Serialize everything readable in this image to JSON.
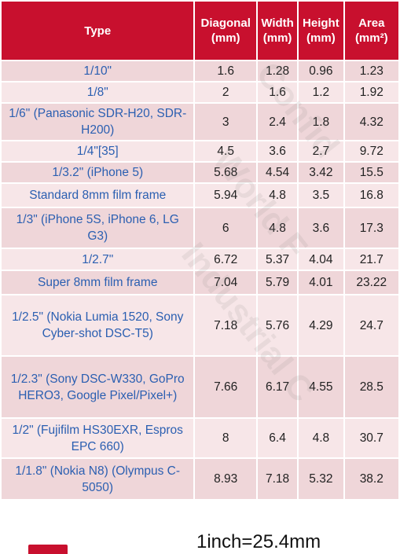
{
  "table": {
    "headers": {
      "type": "Type",
      "diagonal": "Diagonal (mm)",
      "width": "Width (mm)",
      "height": "Height (mm)",
      "area": "Area (mm²)"
    },
    "rows": [
      {
        "type": "1/10\"",
        "diagonal": "1.6",
        "width": "1.28",
        "height": "0.96",
        "area": "1.23"
      },
      {
        "type": "1/8\"",
        "diagonal": "2",
        "width": "1.6",
        "height": "1.2",
        "area": "1.92"
      },
      {
        "type": "1/6\" (Panasonic SDR-H20, SDR-H200)",
        "diagonal": "3",
        "width": "2.4",
        "height": "1.8",
        "area": "4.32"
      },
      {
        "type": "1/4\"[35]",
        "diagonal": "4.5",
        "width": "3.6",
        "height": "2.7",
        "area": "9.72"
      },
      {
        "type": "1/3.2\" (iPhone 5)",
        "diagonal": "5.68",
        "width": "4.54",
        "height": "3.42",
        "area": "15.5"
      },
      {
        "type": "Standard 8mm film frame",
        "diagonal": "5.94",
        "width": "4.8",
        "height": "3.5",
        "area": "16.8"
      },
      {
        "type": "1/3\" (iPhone 5S, iPhone 6, LG G3)",
        "diagonal": "6",
        "width": "4.8",
        "height": "3.6",
        "area": "17.3"
      },
      {
        "type": "1/2.7\"",
        "diagonal": "6.72",
        "width": "5.37",
        "height": "4.04",
        "area": "21.7"
      },
      {
        "type": "Super 8mm film frame",
        "diagonal": "7.04",
        "width": "5.79",
        "height": "4.01",
        "area": "23.22"
      },
      {
        "type": "1/2.5\" (Nokia Lumia 1520, Sony Cyber-shot DSC-T5)",
        "diagonal": "7.18",
        "width": "5.76",
        "height": "4.29",
        "area": "24.7"
      },
      {
        "type": "1/2.3\" (Sony DSC-W330, GoPro HERO3, Google Pixel/Pixel+)",
        "diagonal": "7.66",
        "width": "6.17",
        "height": "4.55",
        "area": "28.5"
      },
      {
        "type": "1/2\" (Fujifilm HS30EXR, Espros EPC 660)",
        "diagonal": "8",
        "width": "6.4",
        "height": "4.8",
        "area": "30.7"
      },
      {
        "type": "1/1.8\" (Nokia N8) (Olympus C-5050)",
        "diagonal": "8.93",
        "width": "7.18",
        "height": "5.32",
        "area": "38.2"
      }
    ]
  },
  "footer": {
    "note": "1inch=25.4mm"
  },
  "watermark": {
    "line1": "Confid",
    "line2": "World F",
    "line3": "Industrial C"
  },
  "colors": {
    "header_bg": "#c8102e",
    "row_odd": "#efd6d9",
    "row_even": "#f7e6e8",
    "type_text": "#2b5fb1"
  }
}
